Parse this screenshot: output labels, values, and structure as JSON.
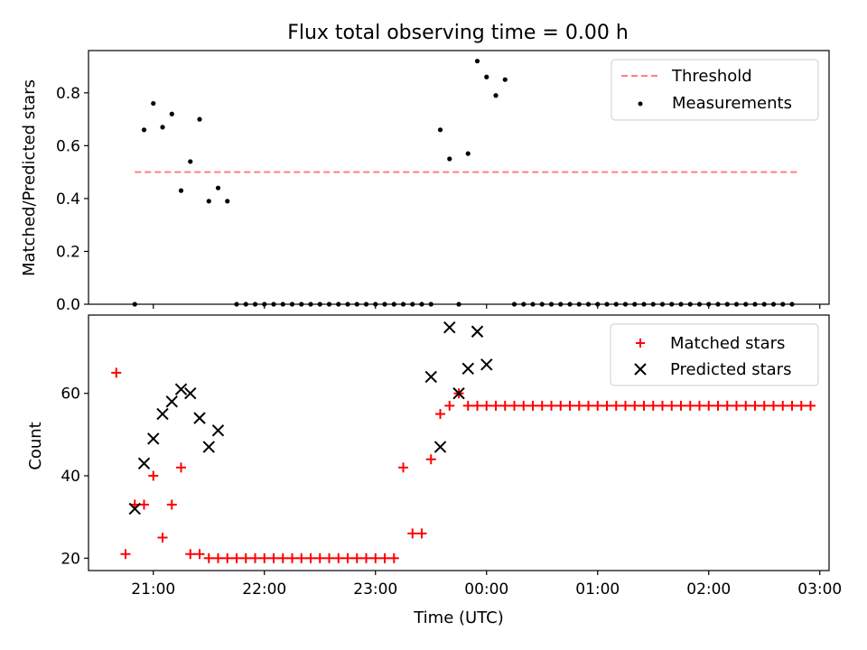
{
  "figure": {
    "title": "Flux total observing time = 0.00 h",
    "xlabel": "Time (UTC)"
  },
  "chart_data": [
    {
      "type": "scatter",
      "title": "Flux total observing time = 0.00 h",
      "ylabel": "Matched/Predicted stars",
      "xlabel": "",
      "xlim": [
        "20:25",
        "03:05"
      ],
      "ylim": [
        0,
        0.96
      ],
      "yticks": [
        0,
        0.2,
        0.4,
        0.6,
        0.8
      ],
      "ytick_labels": [
        "0.0",
        "0.2",
        "0.4",
        "0.6",
        "0.8"
      ],
      "legend_position": "top-right",
      "threshold": {
        "name": "Threshold",
        "value": 0.5,
        "x_start": "20:50",
        "x_end": "02:48",
        "color": "#ff7f7f",
        "style": "dashed"
      },
      "series": [
        {
          "name": "Measurements",
          "color": "#000000",
          "marker": "dot",
          "x": [
            "20:50",
            "20:55",
            "21:00",
            "21:05",
            "21:10",
            "21:15",
            "21:20",
            "21:25",
            "21:30",
            "21:35",
            "21:40",
            "21:45",
            "21:50",
            "21:55",
            "22:00",
            "22:05",
            "22:10",
            "22:15",
            "22:20",
            "22:25",
            "22:30",
            "22:35",
            "22:40",
            "22:45",
            "22:50",
            "22:55",
            "23:00",
            "23:05",
            "23:10",
            "23:15",
            "23:20",
            "23:25",
            "23:30",
            "23:35",
            "23:40",
            "23:45",
            "23:50",
            "23:55",
            "00:00",
            "00:05",
            "00:10",
            "00:15",
            "00:20",
            "00:25",
            "00:30",
            "00:35",
            "00:40",
            "00:45",
            "00:50",
            "00:55",
            "01:00",
            "01:05",
            "01:10",
            "01:15",
            "01:20",
            "01:25",
            "01:30",
            "01:35",
            "01:40",
            "01:45",
            "01:50",
            "01:55",
            "02:00",
            "02:05",
            "02:10",
            "02:15",
            "02:20",
            "02:25",
            "02:30",
            "02:35",
            "02:40",
            "02:45"
          ],
          "y": [
            0,
            0.66,
            0.76,
            0.67,
            0.72,
            0.43,
            0.54,
            0.7,
            0.39,
            0.44,
            0.39,
            0,
            0,
            0,
            0,
            0,
            0,
            0,
            0,
            0,
            0,
            0,
            0,
            0,
            0,
            0,
            0,
            0,
            0,
            0,
            0,
            0,
            0,
            0.66,
            0.55,
            0,
            0.57,
            0.92,
            0.86,
            0.79,
            0.85,
            0,
            0,
            0,
            0,
            0,
            0,
            0,
            0,
            0,
            0,
            0,
            0,
            0,
            0,
            0,
            0,
            0,
            0,
            0,
            0,
            0,
            0,
            0,
            0,
            0,
            0,
            0,
            0,
            0,
            0,
            0
          ]
        }
      ]
    },
    {
      "type": "scatter",
      "title": "",
      "ylabel": "Count",
      "xlabel": "Time (UTC)",
      "xlim": [
        "20:25",
        "03:05"
      ],
      "ylim": [
        17,
        79
      ],
      "yticks": [
        20,
        40,
        60
      ],
      "ytick_labels": [
        "20",
        "40",
        "60"
      ],
      "xticks": [
        "21:00",
        "22:00",
        "23:00",
        "00:00",
        "01:00",
        "02:00",
        "03:00"
      ],
      "legend_position": "top-right",
      "series": [
        {
          "name": "Matched stars",
          "color": "#ff0000",
          "marker": "plus",
          "x": [
            "20:40",
            "20:45",
            "20:50",
            "20:55",
            "21:00",
            "21:05",
            "21:10",
            "21:15",
            "21:20",
            "21:25",
            "21:30",
            "21:35",
            "21:40",
            "21:45",
            "21:50",
            "21:55",
            "22:00",
            "22:05",
            "22:10",
            "22:15",
            "22:20",
            "22:25",
            "22:30",
            "22:35",
            "22:40",
            "22:45",
            "22:50",
            "22:55",
            "23:00",
            "23:05",
            "23:10",
            "23:15",
            "23:20",
            "23:25",
            "23:30",
            "23:35",
            "23:40",
            "23:45",
            "23:50",
            "23:55",
            "00:00",
            "00:05",
            "00:10",
            "00:15",
            "00:20",
            "00:25",
            "00:30",
            "00:35",
            "00:40",
            "00:45",
            "00:50",
            "00:55",
            "01:00",
            "01:05",
            "01:10",
            "01:15",
            "01:20",
            "01:25",
            "01:30",
            "01:35",
            "01:40",
            "01:45",
            "01:50",
            "01:55",
            "02:00",
            "02:05",
            "02:10",
            "02:15",
            "02:20",
            "02:25",
            "02:30",
            "02:35",
            "02:40",
            "02:45",
            "02:50",
            "02:55"
          ],
          "y": [
            65,
            21,
            33,
            33,
            40,
            25,
            33,
            42,
            21,
            21,
            20,
            20,
            20,
            20,
            20,
            20,
            20,
            20,
            20,
            20,
            20,
            20,
            20,
            20,
            20,
            20,
            20,
            20,
            20,
            20,
            20,
            42,
            26,
            26,
            44,
            55,
            57,
            60,
            57,
            57,
            57,
            57,
            57,
            57,
            57,
            57,
            57,
            57,
            57,
            57,
            57,
            57,
            57,
            57,
            57,
            57,
            57,
            57,
            57,
            57,
            57,
            57,
            57,
            57,
            57,
            57,
            57,
            57,
            57,
            57,
            57,
            57,
            57,
            57,
            57,
            57
          ]
        },
        {
          "name": "Predicted stars",
          "color": "#000000",
          "marker": "x",
          "x": [
            "20:50",
            "20:55",
            "21:00",
            "21:05",
            "21:10",
            "21:15",
            "21:20",
            "21:25",
            "21:30",
            "21:35",
            "23:30",
            "23:35",
            "23:40",
            "23:45",
            "23:50",
            "23:55",
            "00:00"
          ],
          "y": [
            32,
            43,
            49,
            55,
            58,
            61,
            60,
            54,
            47,
            51,
            64,
            47,
            76,
            60,
            66,
            75,
            67
          ]
        }
      ]
    }
  ]
}
